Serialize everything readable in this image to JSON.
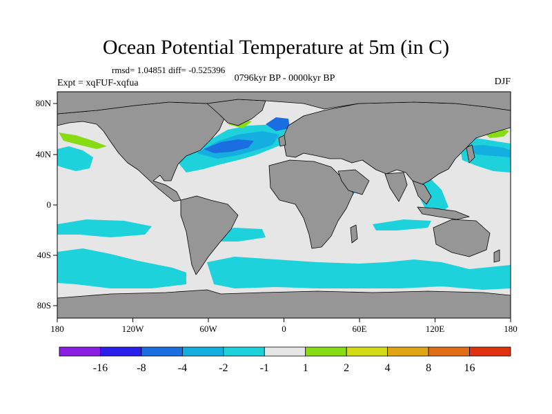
{
  "title": "Ocean Potential Temperature at 5m (in C)",
  "stats": "rmsd= 1.04851 diff= -0.525396",
  "subtitle": "0796kyr BP - 0000kyr BP",
  "experiment": "Expt = xqFUF-xqfua",
  "season": "DJF",
  "axes": {
    "lon_ticks": [
      "180",
      "120W",
      "60W",
      "0",
      "60E",
      "120E",
      "180"
    ],
    "lat_ticks": [
      "80N",
      "40N",
      "0",
      "40S",
      "80S"
    ]
  },
  "colorbar": {
    "colors": [
      "#8a1ee0",
      "#2a1ee8",
      "#1a6ee0",
      "#15aee0",
      "#1ed2dc",
      "#e6e6e6",
      "#88dc14",
      "#d2dc14",
      "#e0a514",
      "#e06e14",
      "#e0320f"
    ],
    "labels": [
      "-16",
      "-8",
      "-4",
      "-2",
      "-1",
      "1",
      "2",
      "4",
      "8",
      "16"
    ]
  },
  "map_colors": {
    "land": "#969696",
    "ocean_neutral": "#e6e6e6",
    "minus_1_to_2": "#1ed2dc",
    "minus_2_to_4": "#15aee0",
    "minus_4_to_8": "#1a6ee0",
    "plus_1_to_2": "#88dc14",
    "plus_2_to_4": "#d2dc14"
  }
}
